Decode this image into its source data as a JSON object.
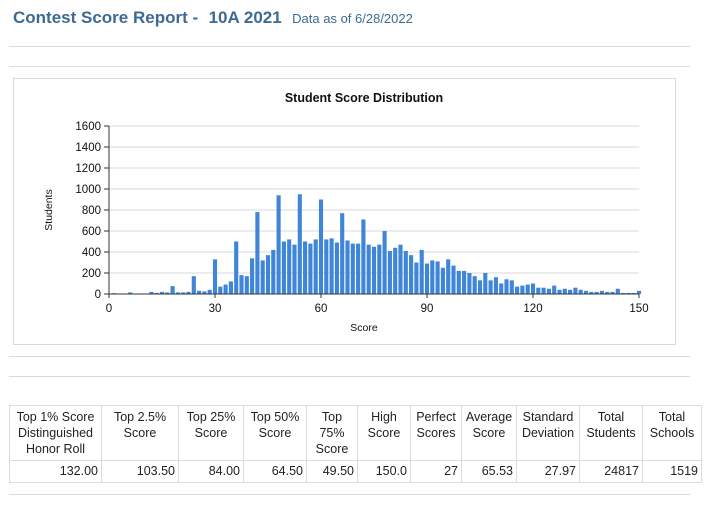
{
  "header": {
    "title": "Contest Score Report -",
    "contest": "10A 2021",
    "as_of": "Data as of 6/28/2022"
  },
  "chart_data": {
    "type": "bar",
    "title": "Student Score Distribution",
    "xlabel": "Score",
    "ylabel": "Students",
    "xlim": [
      0,
      150
    ],
    "ylim": [
      0,
      1600
    ],
    "xticks": [
      "0",
      "30",
      "60",
      "90",
      "120",
      "150"
    ],
    "yticks": [
      "0",
      "200",
      "400",
      "600",
      "800",
      "1000",
      "1200",
      "1400",
      "1600"
    ],
    "grid": true,
    "bar_color": "#3f86d9",
    "x": [
      1.5,
      6,
      9,
      12,
      13.5,
      15,
      16.5,
      18,
      19.5,
      21,
      22.5,
      24,
      25.5,
      27,
      28.5,
      30,
      31.5,
      33,
      34.5,
      36,
      37.5,
      39,
      40.5,
      42,
      43.5,
      45,
      46.5,
      48,
      49.5,
      51,
      52.5,
      54,
      55.5,
      57,
      58.5,
      60,
      61.5,
      63,
      64.5,
      66,
      67.5,
      69,
      70.5,
      72,
      73.5,
      75,
      76.5,
      78,
      79.5,
      81,
      82.5,
      84,
      85.5,
      87,
      88.5,
      90,
      91.5,
      93,
      94.5,
      96,
      97.5,
      99,
      100.5,
      102,
      103.5,
      105,
      106.5,
      108,
      109.5,
      111,
      112.5,
      114,
      115.5,
      117,
      118.5,
      120,
      121.5,
      123,
      124.5,
      126,
      127.5,
      129,
      130.5,
      132,
      133.5,
      135,
      136.5,
      138,
      139.5,
      141,
      142.5,
      144,
      145.5,
      147,
      148.5,
      150
    ],
    "values": [
      8,
      15,
      5,
      20,
      10,
      20,
      15,
      75,
      15,
      15,
      20,
      170,
      30,
      25,
      40,
      330,
      70,
      90,
      120,
      500,
      180,
      170,
      340,
      780,
      320,
      370,
      420,
      940,
      500,
      520,
      470,
      950,
      500,
      480,
      520,
      900,
      520,
      530,
      490,
      770,
      510,
      480,
      480,
      710,
      470,
      450,
      470,
      600,
      410,
      440,
      470,
      410,
      370,
      300,
      420,
      290,
      320,
      310,
      250,
      330,
      270,
      220,
      220,
      200,
      170,
      130,
      200,
      130,
      160,
      100,
      140,
      130,
      70,
      80,
      90,
      100,
      60,
      60,
      50,
      80,
      40,
      50,
      40,
      60,
      40,
      30,
      20,
      20,
      30,
      20,
      20,
      50,
      10,
      10,
      10,
      30
    ]
  },
  "stats_table": {
    "headers": [
      "Top 1% Score Distinguished Honor Roll",
      "Top 2.5% Score",
      "Top 25% Score",
      "Top 50% Score",
      "Top 75% Score",
      "High Score",
      "Perfect Scores",
      "Average Score",
      "Standard Deviation",
      "Total Students",
      "Total Schools"
    ],
    "values": [
      "132.00",
      "103.50",
      "84.00",
      "64.50",
      "49.50",
      "150.0",
      "27",
      "65.53",
      "27.97",
      "24817",
      "1519"
    ]
  }
}
